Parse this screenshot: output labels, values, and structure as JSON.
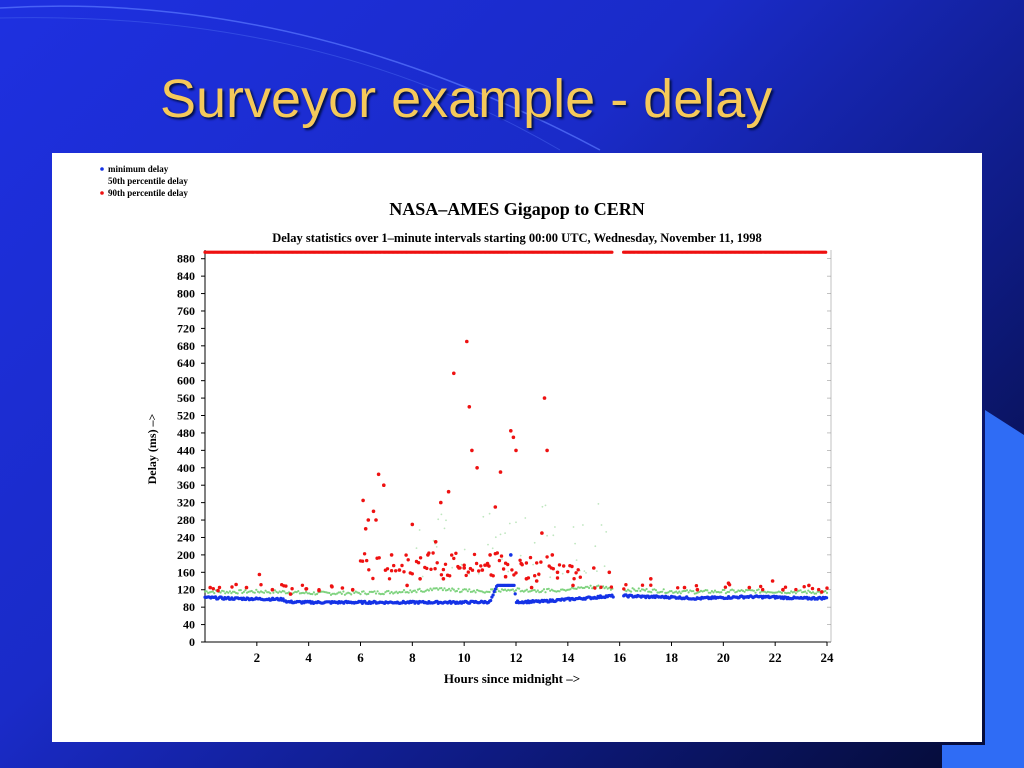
{
  "slide": {
    "title": "Surveyor example - delay"
  },
  "colors": {
    "title": "#f5c95a",
    "background": "#1a2bc8",
    "min_delay": "#1432e6",
    "p50_delay": "#7fd37f",
    "p90_delay": "#ee1111"
  },
  "chart_data": {
    "type": "scatter",
    "title": "NASA–AMES Gigapop to  CERN",
    "subtitle": "Delay statistics over 1–minute intervals starting 00:00 UTC, Wednesday, November 11, 1998",
    "xlabel": "Hours since midnight –>",
    "ylabel": "Delay (ms) –>",
    "xlim": [
      0,
      24
    ],
    "ylim": [
      0,
      900
    ],
    "x_ticks": [
      2,
      4,
      6,
      8,
      10,
      12,
      14,
      16,
      18,
      20,
      22,
      24
    ],
    "y_ticks": [
      0,
      40,
      80,
      120,
      160,
      200,
      240,
      280,
      320,
      360,
      400,
      440,
      480,
      520,
      560,
      600,
      640,
      680,
      720,
      760,
      800,
      840,
      880
    ],
    "legend": {
      "position": "top-left",
      "entries": [
        "minimum delay",
        "50th percentile delay",
        "90th percentile delay"
      ]
    },
    "series": [
      {
        "name": "minimum delay",
        "x": [
          0,
          1,
          2,
          3,
          3.2,
          4,
          5,
          6,
          7,
          8,
          9,
          10,
          11,
          11.8,
          12,
          13,
          14,
          14.5,
          15,
          15.5,
          16.2,
          17,
          18,
          19,
          20,
          21,
          22,
          23,
          24
        ],
        "y": [
          102,
          100,
          99,
          98,
          92,
          91,
          91,
          91,
          91,
          91,
          91,
          91,
          92,
          200,
          92,
          93,
          98,
          100,
          102,
          105,
          106,
          104,
          103,
          100,
          102,
          104,
          103,
          100,
          101
        ]
      },
      {
        "name": "50th percentile delay",
        "x": [
          0,
          1,
          2,
          3,
          4,
          5,
          6,
          7,
          8,
          9,
          10,
          11,
          12,
          13,
          14,
          14.8,
          16.2,
          17,
          18,
          19,
          20,
          21,
          22,
          23,
          24
        ],
        "y": [
          116,
          115,
          116,
          115,
          112,
          112,
          113,
          114,
          118,
          120,
          118,
          117,
          120,
          118,
          121,
          128,
          120,
          119,
          116,
          115,
          116,
          117,
          116,
          115,
          114
        ]
      },
      {
        "name": "90th percentile delay",
        "x": [
          0.2,
          0.5,
          1.2,
          1.6,
          2.1,
          2.6,
          3.3,
          3.9,
          4.4,
          4.9,
          5.3,
          5.7,
          6.1,
          6.2,
          6.3,
          6.5,
          6.6,
          6.7,
          6.9,
          7.2,
          7.5,
          7.8,
          8.0,
          8.3,
          8.6,
          8.9,
          9.1,
          9.2,
          9.4,
          9.6,
          9.8,
          10.0,
          10.1,
          10.2,
          10.3,
          10.5,
          10.7,
          10.9,
          11.0,
          11.2,
          11.4,
          11.6,
          11.8,
          11.9,
          12.0,
          12.2,
          12.4,
          12.6,
          12.8,
          13.0,
          13.1,
          13.2,
          13.4,
          13.6,
          14.2,
          15.0,
          15.6,
          17.2,
          18.5,
          19.0,
          20.2,
          21.0,
          21.9,
          22.3,
          23.3,
          23.8
        ],
        "y": [
          125,
          118,
          132,
          125,
          155,
          120,
          110,
          122,
          118,
          127,
          124,
          120,
          325,
          260,
          280,
          300,
          280,
          385,
          360,
          200,
          165,
          130,
          270,
          145,
          200,
          230,
          320,
          145,
          345,
          617,
          170,
          170,
          690,
          540,
          440,
          400,
          165,
          180,
          200,
          310,
          390,
          150,
          485,
          470,
          440,
          180,
          145,
          125,
          140,
          250,
          560,
          440,
          200,
          160,
          130,
          170,
          160,
          145,
          125,
          120,
          135,
          125,
          140,
          120,
          130,
          115
        ]
      },
      {
        "name": "90th percentile delay (timeouts)",
        "x": [
          0,
          2,
          4,
          6,
          8,
          10,
          12,
          14,
          15.7,
          16.1,
          18,
          20,
          22,
          24
        ],
        "y": [
          895,
          895,
          895,
          895,
          895,
          895,
          895,
          895,
          895,
          895,
          895,
          895,
          895,
          895
        ]
      }
    ]
  }
}
